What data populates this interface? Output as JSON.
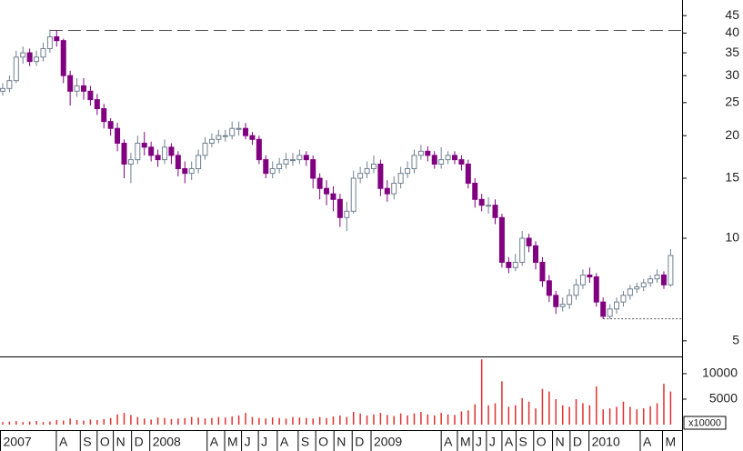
{
  "chart_data": {
    "type": "candlestick",
    "log_scale": true,
    "xlim": [
      -0.4,
      100.7
    ],
    "xticks": [
      {
        "value": -0.4,
        "label": "2007"
      },
      {
        "value": 7.95,
        "label": "A"
      },
      {
        "value": 11.5,
        "label": "S"
      },
      {
        "value": 14.0,
        "label": "O"
      },
      {
        "value": 16.4,
        "label": "N"
      },
      {
        "value": 19.1,
        "label": "D"
      },
      {
        "value": 21.8,
        "label": "2008"
      },
      {
        "value": 30.3,
        "label": "A"
      },
      {
        "value": 32.9,
        "label": "M"
      },
      {
        "value": 35.4,
        "label": "J"
      },
      {
        "value": 37.9,
        "label": "J"
      },
      {
        "value": 40.7,
        "label": "A"
      },
      {
        "value": 43.8,
        "label": "S"
      },
      {
        "value": 46.4,
        "label": "O"
      },
      {
        "value": 49.1,
        "label": "N"
      },
      {
        "value": 51.8,
        "label": "D"
      },
      {
        "value": 54.6,
        "label": "2009"
      },
      {
        "value": 65.0,
        "label": "A"
      },
      {
        "value": 67.4,
        "label": "M"
      },
      {
        "value": 69.7,
        "label": "J"
      },
      {
        "value": 71.7,
        "label": "J"
      },
      {
        "value": 74.0,
        "label": "A"
      },
      {
        "value": 76.1,
        "label": "S"
      },
      {
        "value": 78.7,
        "label": "O"
      },
      {
        "value": 81.5,
        "label": "N"
      },
      {
        "value": 84.1,
        "label": "D"
      },
      {
        "value": 86.9,
        "label": "2010"
      },
      {
        "value": 94.5,
        "label": "A"
      },
      {
        "value": 97.8,
        "label": "M"
      }
    ],
    "ylim": [
      4.5,
      50
    ],
    "yticks": [
      5,
      10,
      15,
      20,
      25,
      30,
      35,
      40,
      45
    ],
    "up_color": "#ffffff",
    "up_border_color": "#708090",
    "down_color": "#800080",
    "reference_lines": [
      40.7,
      5.8
    ],
    "open": [
      27,
      27.5,
      29,
      34,
      35,
      33,
      34,
      36,
      39,
      38,
      30,
      27,
      28,
      27,
      25.5,
      24,
      22,
      21,
      19,
      16.5,
      17,
      19,
      18.5,
      17.5,
      17,
      18.5,
      17.5,
      16,
      15.5,
      16,
      17.5,
      19,
      19.5,
      20,
      20,
      21,
      21,
      20,
      19.5,
      17,
      15.5,
      16,
      16.5,
      17,
      17,
      17.5,
      17,
      15,
      14,
      13.5,
      13,
      11.5,
      12,
      15,
      15.5,
      16,
      16.5,
      14,
      13.5,
      14.5,
      15.5,
      16,
      17.5,
      18,
      17.5,
      16.5,
      17,
      17.5,
      17,
      16.5,
      14.5,
      13,
      12.5,
      12.5,
      11.5,
      8.5,
      8.2,
      8.5,
      10,
      9.5,
      8.5,
      7.5,
      6.8,
      6.3,
      6.4,
      6.8,
      7.3,
      7.8,
      7.7,
      6.5,
      5.9,
      6.2,
      6.5,
      6.8,
      7.1,
      7.2,
      7.4,
      7.6,
      7.8,
      7.3
    ],
    "high": [
      28.5,
      30,
      35.5,
      36.5,
      36,
      35.5,
      37.5,
      41,
      40.7,
      38.5,
      31,
      29.5,
      29.5,
      28,
      26.5,
      24.8,
      22.5,
      21.8,
      19.5,
      17.8,
      20,
      20.5,
      19.2,
      18.2,
      19.5,
      19,
      18,
      16.8,
      16.8,
      18.2,
      19.8,
      20.3,
      20.8,
      20.8,
      22,
      22,
      21.8,
      20.5,
      20,
      17.5,
      16.8,
      17.2,
      17.8,
      17.8,
      18.2,
      18,
      17.5,
      15.5,
      14.8,
      14.2,
      13.5,
      12.8,
      15.8,
      16.2,
      16.8,
      17.5,
      17,
      14.8,
      15.2,
      16.2,
      16.8,
      18.2,
      18.8,
      18.6,
      18,
      18.5,
      18,
      18,
      17.5,
      17,
      15,
      13.5,
      13.2,
      13,
      11.8,
      8.8,
      9,
      10.5,
      10.3,
      9.8,
      8.8,
      7.8,
      7,
      6.7,
      7.1,
      7.6,
      8.1,
      8.2,
      7.9,
      6.7,
      6.4,
      6.7,
      7,
      7.3,
      7.4,
      7.6,
      7.8,
      8.1,
      8,
      9.3
    ],
    "low": [
      26.2,
      26.8,
      28.5,
      32.5,
      32,
      32,
      33,
      35,
      36.5,
      28.5,
      24.5,
      26,
      25.5,
      24.5,
      23,
      21,
      20,
      18,
      15,
      14.5,
      16.5,
      17.5,
      16.8,
      16.2,
      16.5,
      16.5,
      15.2,
      14.5,
      14.8,
      15.5,
      17,
      18.5,
      19,
      19.2,
      19.5,
      20,
      19.5,
      18.8,
      16.5,
      15,
      15,
      15.5,
      16,
      16.3,
      16.5,
      16.3,
      14,
      13,
      12.5,
      12,
      10.8,
      10.5,
      11.8,
      14.5,
      15,
      15.5,
      13.3,
      12.8,
      13,
      14,
      15,
      15.5,
      17,
      16.8,
      16,
      16,
      16.5,
      16.5,
      15.8,
      14,
      12.3,
      12,
      11.8,
      11,
      8.2,
      7.9,
      8,
      8.3,
      9.1,
      8.1,
      7.2,
      6.5,
      6,
      6.1,
      6.2,
      6.6,
      7.1,
      7.4,
      6.3,
      5.8,
      5.8,
      6,
      6.3,
      6.6,
      6.9,
      7,
      7.2,
      7.4,
      7.1,
      7.2
    ],
    "close": [
      27.5,
      29,
      34,
      35,
      33,
      34,
      36,
      39,
      38,
      30,
      27,
      28,
      27,
      25.5,
      24,
      22,
      21,
      19,
      16.5,
      17,
      19,
      18.5,
      17.5,
      17,
      18.5,
      17.5,
      16,
      15.5,
      16,
      17.5,
      19,
      19.5,
      20,
      20,
      21,
      21,
      20,
      19.5,
      17,
      15.5,
      16,
      16.5,
      17,
      17,
      17.5,
      17,
      15,
      14,
      13.5,
      13,
      11.5,
      12,
      15,
      15.5,
      16,
      16.5,
      14,
      13.5,
      14.5,
      15.5,
      16,
      17.5,
      18,
      17.5,
      16.5,
      17,
      17.5,
      17,
      16.5,
      14.5,
      13,
      12.5,
      12.5,
      11.5,
      8.5,
      8.2,
      8.5,
      10,
      9.5,
      8.5,
      7.5,
      6.8,
      6.3,
      6.4,
      6.8,
      7.3,
      7.8,
      7.7,
      6.5,
      5.9,
      6.2,
      6.5,
      6.8,
      7.1,
      7.2,
      7.4,
      7.6,
      7.8,
      7.3,
      8.9
    ],
    "volume": {
      "color": "#e03030",
      "ylim": [
        0,
        13200
      ],
      "yticks": [
        5000,
        10000
      ],
      "unit_label": "x10000",
      "values": [
        500,
        600,
        700,
        500,
        600,
        700,
        500,
        600,
        900,
        800,
        1200,
        900,
        800,
        1000,
        900,
        1100,
        1300,
        2000,
        2300,
        1900,
        1500,
        1200,
        1000,
        1400,
        1300,
        1100,
        1200,
        1300,
        1500,
        1400,
        1200,
        1300,
        1500,
        1400,
        1600,
        1800,
        2300,
        1500,
        1300,
        1200,
        1400,
        1300,
        1200,
        1500,
        1400,
        1300,
        1200,
        1500,
        1300,
        1600,
        1800,
        1500,
        2500,
        2200,
        1800,
        2000,
        2300,
        1900,
        1700,
        2200,
        1800,
        2200,
        2500,
        2000,
        1800,
        2300,
        2000,
        1900,
        2600,
        2800,
        4000,
        12800,
        3800,
        4200,
        8500,
        3500,
        3800,
        5200,
        4500,
        3200,
        7000,
        6500,
        5000,
        3800,
        3500,
        5000,
        4200,
        3800,
        7500,
        3000,
        3200,
        3500,
        4500,
        3500,
        3000,
        3200,
        3600,
        4200,
        8000,
        6500
      ]
    }
  }
}
